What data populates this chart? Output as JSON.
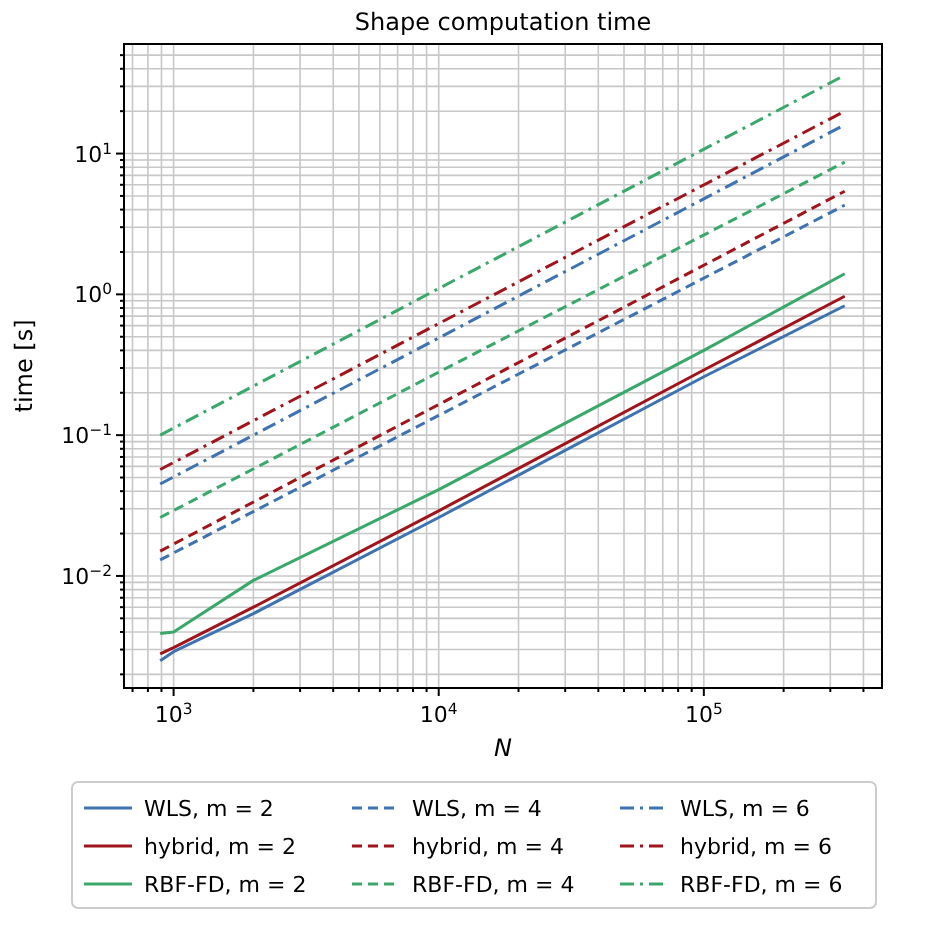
{
  "chart_data": {
    "type": "line",
    "title": "Shape computation time",
    "xlabel": "N",
    "ylabel": "time [s]",
    "log": "xy",
    "grid": true,
    "legend": "bottom",
    "xlim": [
      650,
      470000
    ],
    "ylim": [
      0.0016,
      60
    ],
    "xticks": [
      {
        "value": 700,
        "label": null
      },
      {
        "value": 800,
        "label": null
      },
      {
        "value": 900,
        "label": null
      },
      {
        "value": 1000,
        "label": "10$^{3}$"
      },
      {
        "value": 2000,
        "label": null
      },
      {
        "value": 3000,
        "label": null
      },
      {
        "value": 4000,
        "label": null
      },
      {
        "value": 5000,
        "label": null
      },
      {
        "value": 6000,
        "label": null
      },
      {
        "value": 7000,
        "label": null
      },
      {
        "value": 8000,
        "label": null
      },
      {
        "value": 9000,
        "label": null
      },
      {
        "value": 10000,
        "label": "10$^{4}$"
      },
      {
        "value": 20000,
        "label": null
      },
      {
        "value": 30000,
        "label": null
      },
      {
        "value": 40000,
        "label": null
      },
      {
        "value": 50000,
        "label": null
      },
      {
        "value": 60000,
        "label": null
      },
      {
        "value": 70000,
        "label": null
      },
      {
        "value": 80000,
        "label": null
      },
      {
        "value": 90000,
        "label": null
      },
      {
        "value": 100000,
        "label": "10$^{5}$"
      },
      {
        "value": 200000,
        "label": null
      },
      {
        "value": 300000,
        "label": null
      },
      {
        "value": 400000,
        "label": null
      }
    ],
    "yticks": [
      {
        "value": 0.002,
        "label": null
      },
      {
        "value": 0.003,
        "label": null
      },
      {
        "value": 0.004,
        "label": null
      },
      {
        "value": 0.005,
        "label": null
      },
      {
        "value": 0.006,
        "label": null
      },
      {
        "value": 0.007,
        "label": null
      },
      {
        "value": 0.008,
        "label": null
      },
      {
        "value": 0.009,
        "label": null
      },
      {
        "value": 0.01,
        "label": "10$^{−2}$"
      },
      {
        "value": 0.02,
        "label": null
      },
      {
        "value": 0.03,
        "label": null
      },
      {
        "value": 0.04,
        "label": null
      },
      {
        "value": 0.05,
        "label": null
      },
      {
        "value": 0.06,
        "label": null
      },
      {
        "value": 0.07,
        "label": null
      },
      {
        "value": 0.08,
        "label": null
      },
      {
        "value": 0.09,
        "label": null
      },
      {
        "value": 0.1,
        "label": "10$^{−1}$"
      },
      {
        "value": 0.2,
        "label": null
      },
      {
        "value": 0.3,
        "label": null
      },
      {
        "value": 0.4,
        "label": null
      },
      {
        "value": 0.5,
        "label": null
      },
      {
        "value": 0.6,
        "label": null
      },
      {
        "value": 0.7,
        "label": null
      },
      {
        "value": 0.8,
        "label": null
      },
      {
        "value": 0.9,
        "label": null
      },
      {
        "value": 1,
        "label": "10$^{0}$"
      },
      {
        "value": 2,
        "label": null
      },
      {
        "value": 3,
        "label": null
      },
      {
        "value": 4,
        "label": null
      },
      {
        "value": 5,
        "label": null
      },
      {
        "value": 6,
        "label": null
      },
      {
        "value": 7,
        "label": null
      },
      {
        "value": 8,
        "label": null
      },
      {
        "value": 9,
        "label": null
      },
      {
        "value": 10,
        "label": "10$^{1}$"
      },
      {
        "value": 20,
        "label": null
      },
      {
        "value": 30,
        "label": null
      },
      {
        "value": 40,
        "label": null
      },
      {
        "value": 50,
        "label": null
      }
    ],
    "series": [
      {
        "name": "WLS, m = 2",
        "color": "#3f73b0",
        "line_style": "solid",
        "x": [
          890,
          1000,
          2000,
          10000,
          100000,
          340000
        ],
        "values": [
          0.0025,
          0.0029,
          0.0054,
          0.026,
          0.26,
          0.83
        ]
      },
      {
        "name": "hybrid, m = 2",
        "color": "#a0151c",
        "line_style": "solid",
        "x": [
          890,
          1000,
          2000,
          10000,
          100000,
          340000
        ],
        "values": [
          0.0028,
          0.0031,
          0.006,
          0.029,
          0.29,
          0.97
        ]
      },
      {
        "name": "RBF-FD, m = 2",
        "color": "#3aa86b",
        "line_style": "solid",
        "x": [
          890,
          1000,
          2000,
          10000,
          100000,
          340000
        ],
        "values": [
          0.0039,
          0.004,
          0.0093,
          0.041,
          0.4,
          1.4
        ]
      },
      {
        "name": "WLS, m = 4",
        "color": "#3f73b0",
        "line_style": "dashed",
        "x": [
          890,
          10000,
          340000
        ],
        "values": [
          0.013,
          0.138,
          4.3
        ]
      },
      {
        "name": "hybrid, m = 4",
        "color": "#a0151c",
        "line_style": "dashed",
        "x": [
          890,
          10000,
          340000
        ],
        "values": [
          0.015,
          0.165,
          5.4
        ]
      },
      {
        "name": "RBF-FD, m = 4",
        "color": "#3aa86b",
        "line_style": "dashed",
        "x": [
          890,
          10000,
          340000
        ],
        "values": [
          0.026,
          0.28,
          8.7
        ]
      },
      {
        "name": "WLS, m = 6",
        "color": "#3f73b0",
        "line_style": "dashdot",
        "x": [
          890,
          10000,
          340000
        ],
        "values": [
          0.045,
          0.49,
          16
        ]
      },
      {
        "name": "hybrid, m = 6",
        "color": "#a0151c",
        "line_style": "dashdot",
        "x": [
          890,
          10000,
          340000
        ],
        "values": [
          0.057,
          0.62,
          20
        ]
      },
      {
        "name": "RBF-FD, m = 6",
        "color": "#3aa86b",
        "line_style": "dashdot",
        "x": [
          890,
          10000,
          340000
        ],
        "values": [
          0.1,
          1.1,
          36
        ]
      }
    ]
  }
}
